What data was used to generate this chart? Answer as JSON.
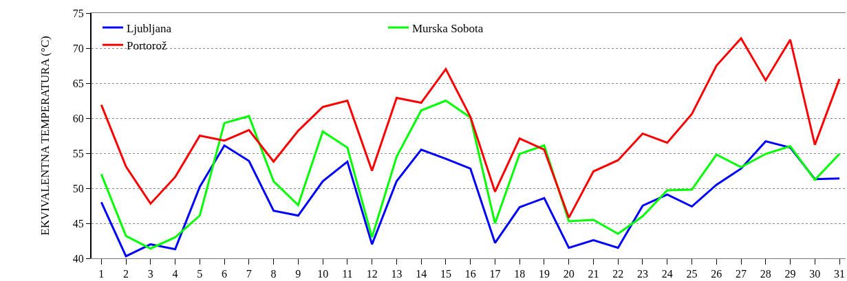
{
  "chart_data": {
    "type": "line",
    "ylabel": "EKVIVALENTNA TEMPERATURA (°C)",
    "x": [
      1,
      2,
      3,
      4,
      5,
      6,
      7,
      8,
      9,
      10,
      11,
      12,
      13,
      14,
      15,
      16,
      17,
      18,
      19,
      20,
      21,
      22,
      23,
      24,
      25,
      26,
      27,
      28,
      29,
      30,
      31
    ],
    "series": [
      {
        "name": "Ljubljana",
        "color": "#0000ff",
        "values": [
          48,
          40.3,
          42,
          41.3,
          50.2,
          56.1,
          53.9,
          46.8,
          46.1,
          51,
          53.8,
          42,
          51,
          55.5,
          54.2,
          52.8,
          42.2,
          47.3,
          48.6,
          41.5,
          42.6,
          41.5,
          47.5,
          49.1,
          47.4,
          50.5,
          52.8,
          56.7,
          55.8,
          51.3,
          51.4
        ]
      },
      {
        "name": "Murska Sobota",
        "color": "#00ff00",
        "values": [
          52,
          43.2,
          41.4,
          43,
          46.1,
          59.3,
          60.3,
          51,
          47.6,
          58.1,
          55.8,
          43,
          54.5,
          61.1,
          62.5,
          60.1,
          45,
          54.9,
          56.1,
          45.3,
          45.5,
          43.5,
          46,
          49.7,
          49.8,
          54.8,
          53,
          54.9,
          56,
          51.2,
          54.9
        ]
      },
      {
        "name": "Portorož",
        "color": "#ff0000",
        "values": [
          61.9,
          53.1,
          47.8,
          51.6,
          57.5,
          56.8,
          58.3,
          53.8,
          58.2,
          61.6,
          62.5,
          52.5,
          62.9,
          62.2,
          67,
          60.2,
          49.5,
          57.1,
          55.5,
          45.8,
          52.4,
          54,
          57.8,
          56.5,
          60.6,
          67.5,
          71.4,
          65.4,
          71.2,
          56.2,
          65.6
        ]
      }
    ],
    "xlim": [
      0.6,
      31.25
    ],
    "xticks": [
      1,
      2,
      3,
      4,
      5,
      6,
      7,
      8,
      9,
      10,
      11,
      12,
      13,
      14,
      15,
      16,
      17,
      18,
      19,
      20,
      21,
      22,
      23,
      24,
      25,
      26,
      27,
      28,
      29,
      30,
      31
    ],
    "ylim": [
      40,
      75
    ],
    "yticks": [
      40,
      45,
      50,
      55,
      60,
      65,
      70,
      75
    ],
    "grid": "y",
    "legend": "top",
    "marker": "none",
    "line_style": "solid"
  }
}
